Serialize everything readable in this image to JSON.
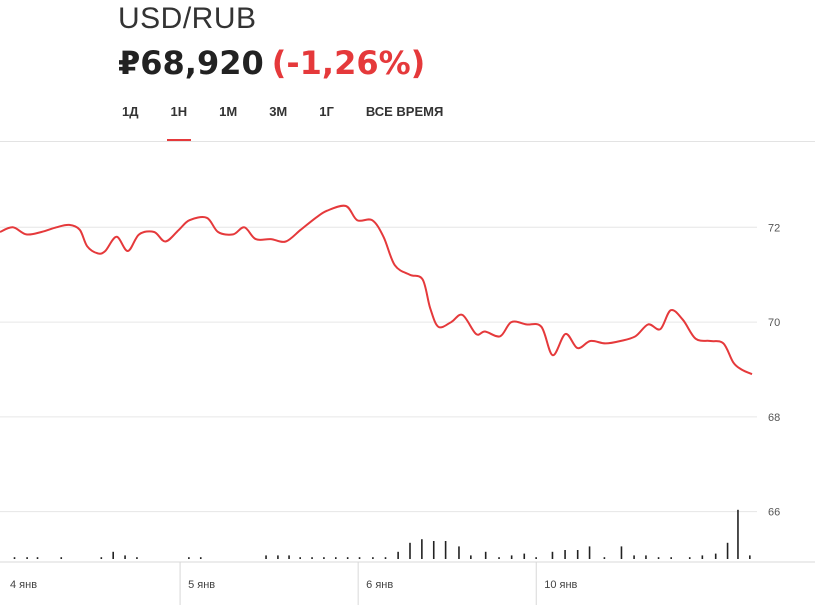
{
  "header": {
    "pair": "USD/RUB",
    "price": "₽68,920",
    "change": "(-1,26%)"
  },
  "tabs": [
    {
      "label": "1Д",
      "active": false
    },
    {
      "label": "1Н",
      "active": true
    },
    {
      "label": "1М",
      "active": false
    },
    {
      "label": "3М",
      "active": false
    },
    {
      "label": "1Г",
      "active": false
    },
    {
      "label": "ВСЕ ВРЕМЯ",
      "active": false
    }
  ],
  "colors": {
    "accent": "#e5393b",
    "line": "#e5393b",
    "grid": "#e6e6e6",
    "volume": "#222222"
  },
  "chart_data": {
    "type": "line",
    "ylim": [
      65,
      73.8
    ],
    "yticks": [
      66,
      68,
      70,
      72
    ],
    "ytick_labels": [
      "66",
      "68",
      "70",
      "72"
    ],
    "xlim": [
      0,
      100
    ],
    "x_tick_labels": [
      {
        "x": 0,
        "label": "4 янв"
      },
      {
        "x": 24,
        "label": "5 янв"
      },
      {
        "x": 48,
        "label": "6 янв"
      },
      {
        "x": 72,
        "label": "10 янв"
      }
    ],
    "grid": true,
    "series": [
      {
        "values": [
          [
            0,
            71.9
          ],
          [
            1.7,
            72.0
          ],
          [
            3.5,
            71.85
          ],
          [
            5.5,
            71.9
          ],
          [
            7.5,
            72.0
          ],
          [
            9.2,
            72.05
          ],
          [
            10.6,
            71.95
          ],
          [
            11.6,
            71.6
          ],
          [
            13.0,
            71.45
          ],
          [
            14.0,
            71.5
          ],
          [
            15.5,
            71.8
          ],
          [
            17.0,
            71.5
          ],
          [
            18.5,
            71.85
          ],
          [
            20.5,
            71.9
          ],
          [
            22.0,
            71.7
          ],
          [
            23.8,
            71.95
          ],
          [
            25.2,
            72.15
          ],
          [
            27.5,
            72.2
          ],
          [
            29.0,
            71.9
          ],
          [
            31.0,
            71.85
          ],
          [
            32.5,
            72.0
          ],
          [
            34.0,
            71.75
          ],
          [
            36.0,
            71.75
          ],
          [
            38.0,
            71.7
          ],
          [
            40.0,
            71.95
          ],
          [
            42.0,
            72.2
          ],
          [
            43.5,
            72.35
          ],
          [
            46.0,
            72.45
          ],
          [
            47.5,
            72.15
          ],
          [
            49.5,
            72.15
          ],
          [
            51.0,
            71.8
          ],
          [
            52.5,
            71.2
          ],
          [
            54.5,
            71.0
          ],
          [
            56.2,
            70.9
          ],
          [
            57.2,
            70.3
          ],
          [
            58.3,
            69.9
          ],
          [
            60.0,
            70.0
          ],
          [
            61.5,
            70.15
          ],
          [
            63.3,
            69.75
          ],
          [
            64.5,
            69.8
          ],
          [
            66.5,
            69.7
          ],
          [
            68.0,
            70.0
          ],
          [
            70.0,
            69.95
          ],
          [
            72.0,
            69.9
          ],
          [
            73.5,
            69.3
          ],
          [
            75.2,
            69.75
          ],
          [
            76.8,
            69.45
          ],
          [
            78.5,
            69.6
          ],
          [
            80.5,
            69.55
          ],
          [
            82.5,
            69.6
          ],
          [
            84.5,
            69.7
          ],
          [
            86.2,
            69.95
          ],
          [
            87.8,
            69.85
          ],
          [
            89.2,
            70.25
          ],
          [
            90.8,
            70.05
          ],
          [
            92.5,
            69.65
          ],
          [
            94.5,
            69.6
          ],
          [
            96.2,
            69.55
          ],
          [
            97.5,
            69.15
          ],
          [
            98.6,
            69.0
          ],
          [
            100,
            68.9
          ]
        ]
      }
    ],
    "volume": [
      [
        0.5,
        0.03
      ],
      [
        2.2,
        0.03
      ],
      [
        3.6,
        0.03
      ],
      [
        6.8,
        0.03
      ],
      [
        12.2,
        0.03
      ],
      [
        13.8,
        0.12
      ],
      [
        15.4,
        0.06
      ],
      [
        17.0,
        0.03
      ],
      [
        24.0,
        0.03
      ],
      [
        25.6,
        0.03
      ],
      [
        34.4,
        0.06
      ],
      [
        36.0,
        0.06
      ],
      [
        37.5,
        0.06
      ],
      [
        39.0,
        0.03
      ],
      [
        40.6,
        0.03
      ],
      [
        42.2,
        0.03
      ],
      [
        43.8,
        0.03
      ],
      [
        45.4,
        0.03
      ],
      [
        47.0,
        0.03
      ],
      [
        48.8,
        0.03
      ],
      [
        50.5,
        0.03
      ],
      [
        52.2,
        0.12
      ],
      [
        53.8,
        0.27
      ],
      [
        55.4,
        0.33
      ],
      [
        57.0,
        0.3
      ],
      [
        58.6,
        0.3
      ],
      [
        60.4,
        0.21
      ],
      [
        62.0,
        0.06
      ],
      [
        64.0,
        0.12
      ],
      [
        65.8,
        0.03
      ],
      [
        67.5,
        0.06
      ],
      [
        69.2,
        0.09
      ],
      [
        70.8,
        0.03
      ],
      [
        73.0,
        0.12
      ],
      [
        74.7,
        0.15
      ],
      [
        76.4,
        0.15
      ],
      [
        78.0,
        0.21
      ],
      [
        80.0,
        0.03
      ],
      [
        82.3,
        0.21
      ],
      [
        84.0,
        0.06
      ],
      [
        85.6,
        0.06
      ],
      [
        87.3,
        0.03
      ],
      [
        89.0,
        0.03
      ],
      [
        91.5,
        0.03
      ],
      [
        93.2,
        0.06
      ],
      [
        95.0,
        0.09
      ],
      [
        96.6,
        0.27
      ],
      [
        98.0,
        0.82
      ],
      [
        99.6,
        0.06
      ]
    ]
  }
}
